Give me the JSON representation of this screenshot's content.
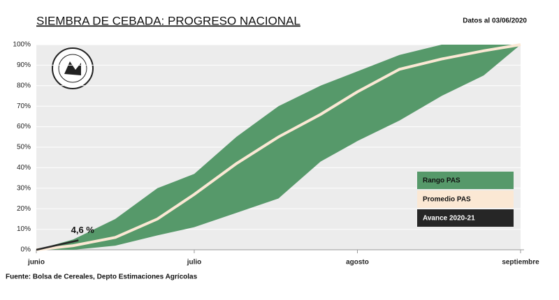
{
  "chart_data": {
    "type": "area_range",
    "title": "SIEMBRA DE CEBADA: PROGRESO NACIONAL",
    "subtitle": "Datos al 03/06/2020",
    "source": "Fuente: Bolsa de Cereales, Depto Estimaciones Agrícolas",
    "x": [
      0,
      7,
      15,
      23,
      30,
      38,
      46,
      54,
      61,
      69,
      77,
      85,
      92
    ],
    "xlim": [
      0,
      92
    ],
    "xticks": [
      {
        "value": 0,
        "label": "junio"
      },
      {
        "value": 30,
        "label": "julio"
      },
      {
        "value": 61,
        "label": "agosto"
      },
      {
        "value": 92,
        "label": "septiembre"
      }
    ],
    "ylim": [
      0,
      100
    ],
    "yticks": [
      {
        "value": 0,
        "label": "0%"
      },
      {
        "value": 10,
        "label": "10%"
      },
      {
        "value": 20,
        "label": "20%"
      },
      {
        "value": 30,
        "label": "30%"
      },
      {
        "value": 40,
        "label": "40%"
      },
      {
        "value": 50,
        "label": "50%"
      },
      {
        "value": 60,
        "label": "60%"
      },
      {
        "value": 70,
        "label": "70%"
      },
      {
        "value": 80,
        "label": "80%"
      },
      {
        "value": 90,
        "label": "90%"
      },
      {
        "value": 100,
        "label": "100%"
      }
    ],
    "grid": true,
    "legend": "lower right",
    "series": [
      {
        "name": "Rango PAS",
        "color": "#56996a",
        "high": [
          0,
          5,
          15,
          30,
          37,
          55,
          70,
          80,
          87,
          95,
          100,
          100,
          100
        ],
        "low": [
          0,
          0,
          2,
          7,
          11,
          18,
          25,
          43,
          53,
          63,
          75,
          85,
          100
        ]
      },
      {
        "name": "Promedio PAS",
        "color": "#fbe8d4",
        "values": [
          0,
          2,
          6,
          15,
          27,
          42,
          55,
          66,
          77,
          88,
          93,
          97,
          100
        ]
      },
      {
        "name": "Avance 2020-21",
        "color": "#262626",
        "x": [
          0,
          8
        ],
        "values": [
          0,
          4.6
        ],
        "value_labels": [
          null,
          "4,6 %"
        ]
      }
    ]
  }
}
